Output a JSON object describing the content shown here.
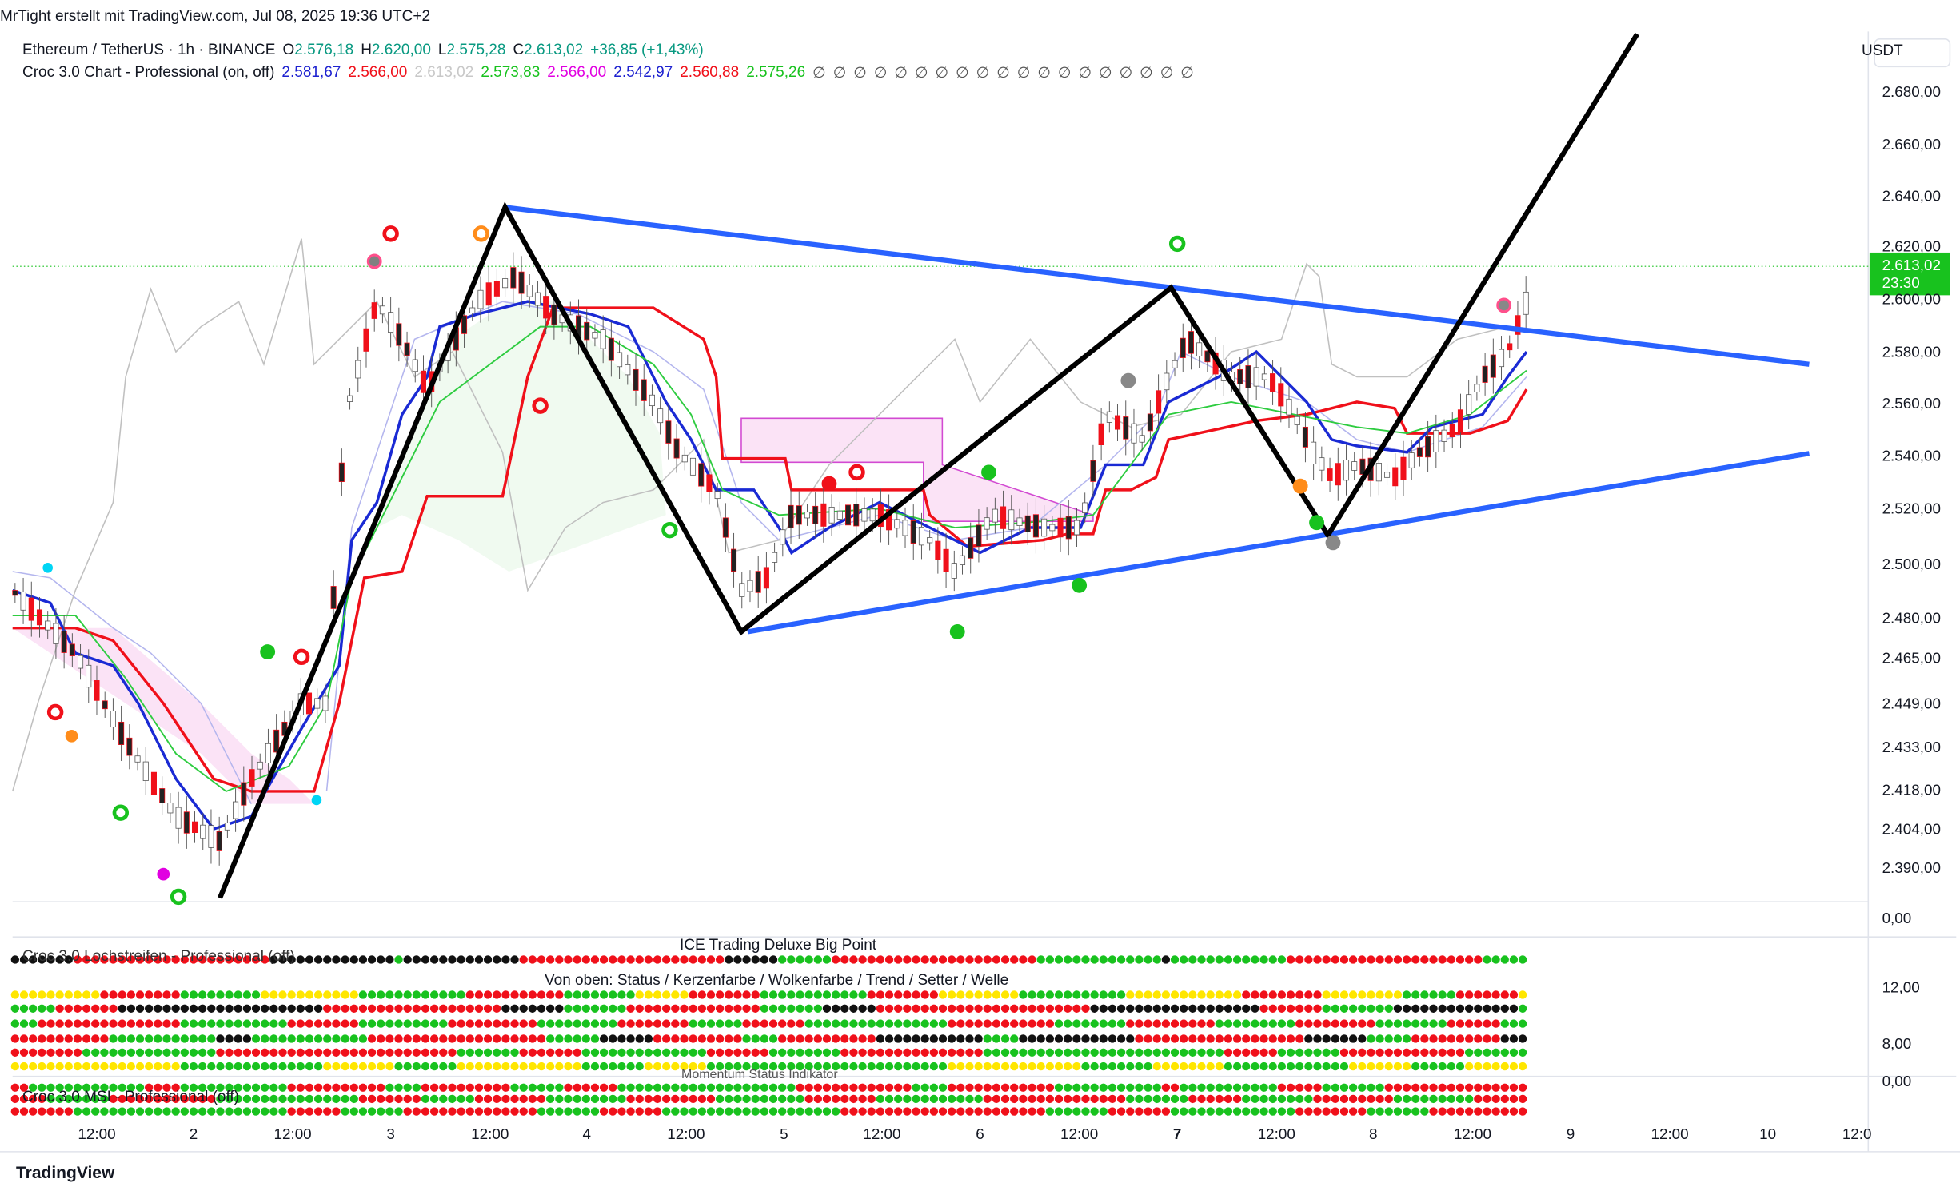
{
  "header": {
    "author_line": "MrTight erstellt mit TradingView.com, Jul 08, 2025 19:36 UTC+2",
    "symbol": "Ethereum / TetherUS · 1h · BINANCE",
    "ohlc": [
      {
        "label": "O",
        "value": "2.576,18"
      },
      {
        "label": "H",
        "value": "2.620,00"
      },
      {
        "label": "L",
        "value": "2.575,28"
      },
      {
        "label": "C",
        "value": "2.613,02"
      }
    ],
    "change": "+36,85 (+1,43%)"
  },
  "indicator": {
    "name": "Croc 3.0 Chart - Professional (on, off)",
    "values": [
      "2.581,67",
      "2.566,00",
      "2.613,02",
      "2.573,83",
      "2.566,00",
      "2.542,97",
      "2.560,88",
      "2.575,26"
    ],
    "empty_values": [
      "∅",
      "∅",
      "∅",
      "∅",
      "∅",
      "∅",
      "∅",
      "∅",
      "∅",
      "∅",
      "∅",
      "∅",
      "∅",
      "∅",
      "∅",
      "∅",
      "∅",
      "∅",
      "∅"
    ]
  },
  "price_axis": {
    "currency": "USDT",
    "ticks": [
      "2.680,00",
      "2.660,00",
      "2.640,00",
      "2.620,00",
      "2.600,00",
      "2.580,00",
      "2.560,00",
      "2.540,00",
      "2.520,00",
      "2.500,00",
      "2.480,00",
      "2.465,00",
      "2.449,00",
      "2.433,00",
      "2.418,00",
      "2.404,00",
      "2.390,00"
    ],
    "last_price": "2.613,02",
    "countdown": "23:30"
  },
  "panels": [
    {
      "title": "Croc 3.0 Lochstreifen - Professional (off)",
      "axis_tick": "0,00"
    },
    {
      "title": "ICE Trading Deluxe Big Point",
      "subtitle": "Von oben: Status / Kerzenfarbe / Wolkenfarbe / Trend / Setter / Welle",
      "axis_ticks": [
        "12,00",
        "8,00"
      ]
    },
    {
      "title": "Momentum Status Indikator",
      "label": "Croc 3.0 MSI - Professional (off)",
      "axis_tick": "0,00"
    }
  ],
  "time_axis": {
    "ticks": [
      "12:00",
      "2",
      "12:00",
      "3",
      "12:00",
      "4",
      "12:00",
      "5",
      "12:00",
      "6",
      "12:00",
      "7",
      "12:00",
      "8",
      "12:00",
      "9",
      "12:00",
      "10",
      "12:0"
    ]
  },
  "footer": "TradingView"
}
